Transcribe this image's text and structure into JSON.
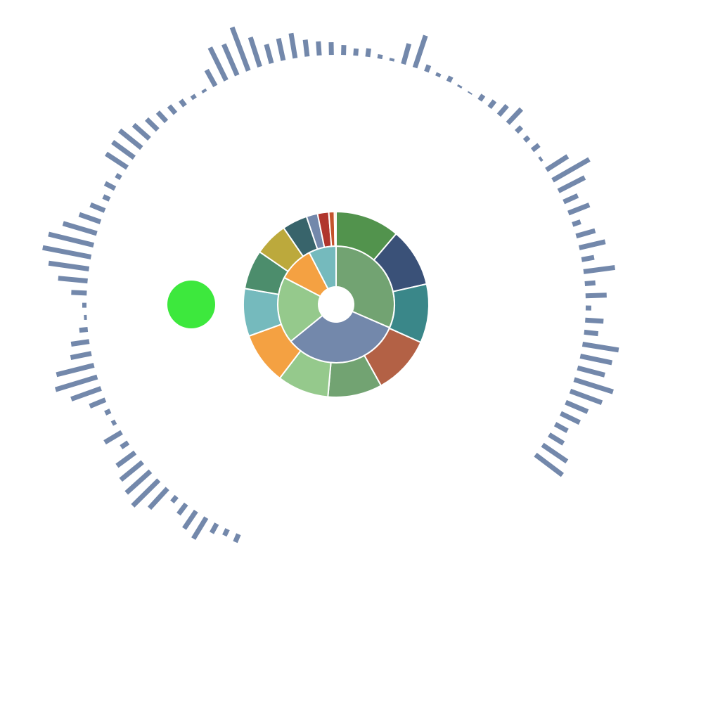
{
  "colors": {
    "background": "#ffffff",
    "stroke": "#ffffff",
    "bars": "#7388ab",
    "dot": "#3de83d"
  },
  "chart_data": [
    {
      "type": "sunburst",
      "inner_ring": [
        {
          "value": 29,
          "color": "#72a372"
        },
        {
          "value": 30,
          "color": "#7388ab"
        },
        {
          "value": 17,
          "color": "#95c98c"
        },
        {
          "value": 9,
          "color": "#f4a142"
        },
        {
          "value": 7,
          "color": "#75babd"
        }
      ],
      "outer_ring": [
        {
          "value": 11.5,
          "color": "#52934d"
        },
        {
          "value": 10.5,
          "color": "#3a5178"
        },
        {
          "value": 10.5,
          "color": "#3a8789"
        },
        {
          "value": 10.5,
          "color": "#b36145"
        },
        {
          "value": 9.7,
          "color": "#72a372"
        },
        {
          "value": 9.2,
          "color": "#95c98c"
        },
        {
          "value": 9.3,
          "color": "#f4a142"
        },
        {
          "value": 8.5,
          "color": "#75babd"
        },
        {
          "value": 7,
          "color": "#4c8d6c"
        },
        {
          "value": 6,
          "color": "#bca93c"
        },
        {
          "value": 4.5,
          "color": "#38646b"
        },
        {
          "value": 2,
          "color": "#7388ab"
        },
        {
          "value": 2,
          "color": "#b0352d"
        },
        {
          "value": 1,
          "color": "#c5532c"
        },
        {
          "value": 0.3,
          "color": "#f4a142"
        }
      ]
    },
    {
      "type": "radial-bar",
      "start_angle_deg": 23,
      "end_angle_deg": 307,
      "values": [
        12,
        10,
        15,
        35,
        30,
        18,
        10,
        38,
        52,
        46,
        40,
        32,
        12,
        28,
        6,
        8,
        24,
        45,
        62,
        55,
        30,
        26,
        12,
        4,
        6,
        22,
        42,
        58,
        70,
        66,
        50,
        32,
        22,
        10,
        16,
        8,
        36,
        38,
        40,
        30,
        22,
        18,
        14,
        10,
        6,
        4,
        26,
        52,
        48,
        66,
        44,
        28,
        32,
        36,
        24,
        20,
        18,
        14,
        10,
        12,
        6,
        4,
        30,
        48,
        10,
        5,
        8,
        3,
        2,
        9,
        12,
        18,
        28,
        10,
        8,
        12,
        4,
        36,
        60,
        42,
        22,
        32,
        12,
        28,
        38,
        18,
        45,
        15,
        30,
        8,
        26,
        20,
        52,
        46,
        40,
        58,
        48,
        34,
        30,
        20,
        24,
        42,
        48
      ]
    },
    {
      "type": "scatter",
      "points": [
        {
          "color": "#3de83d"
        }
      ]
    }
  ]
}
